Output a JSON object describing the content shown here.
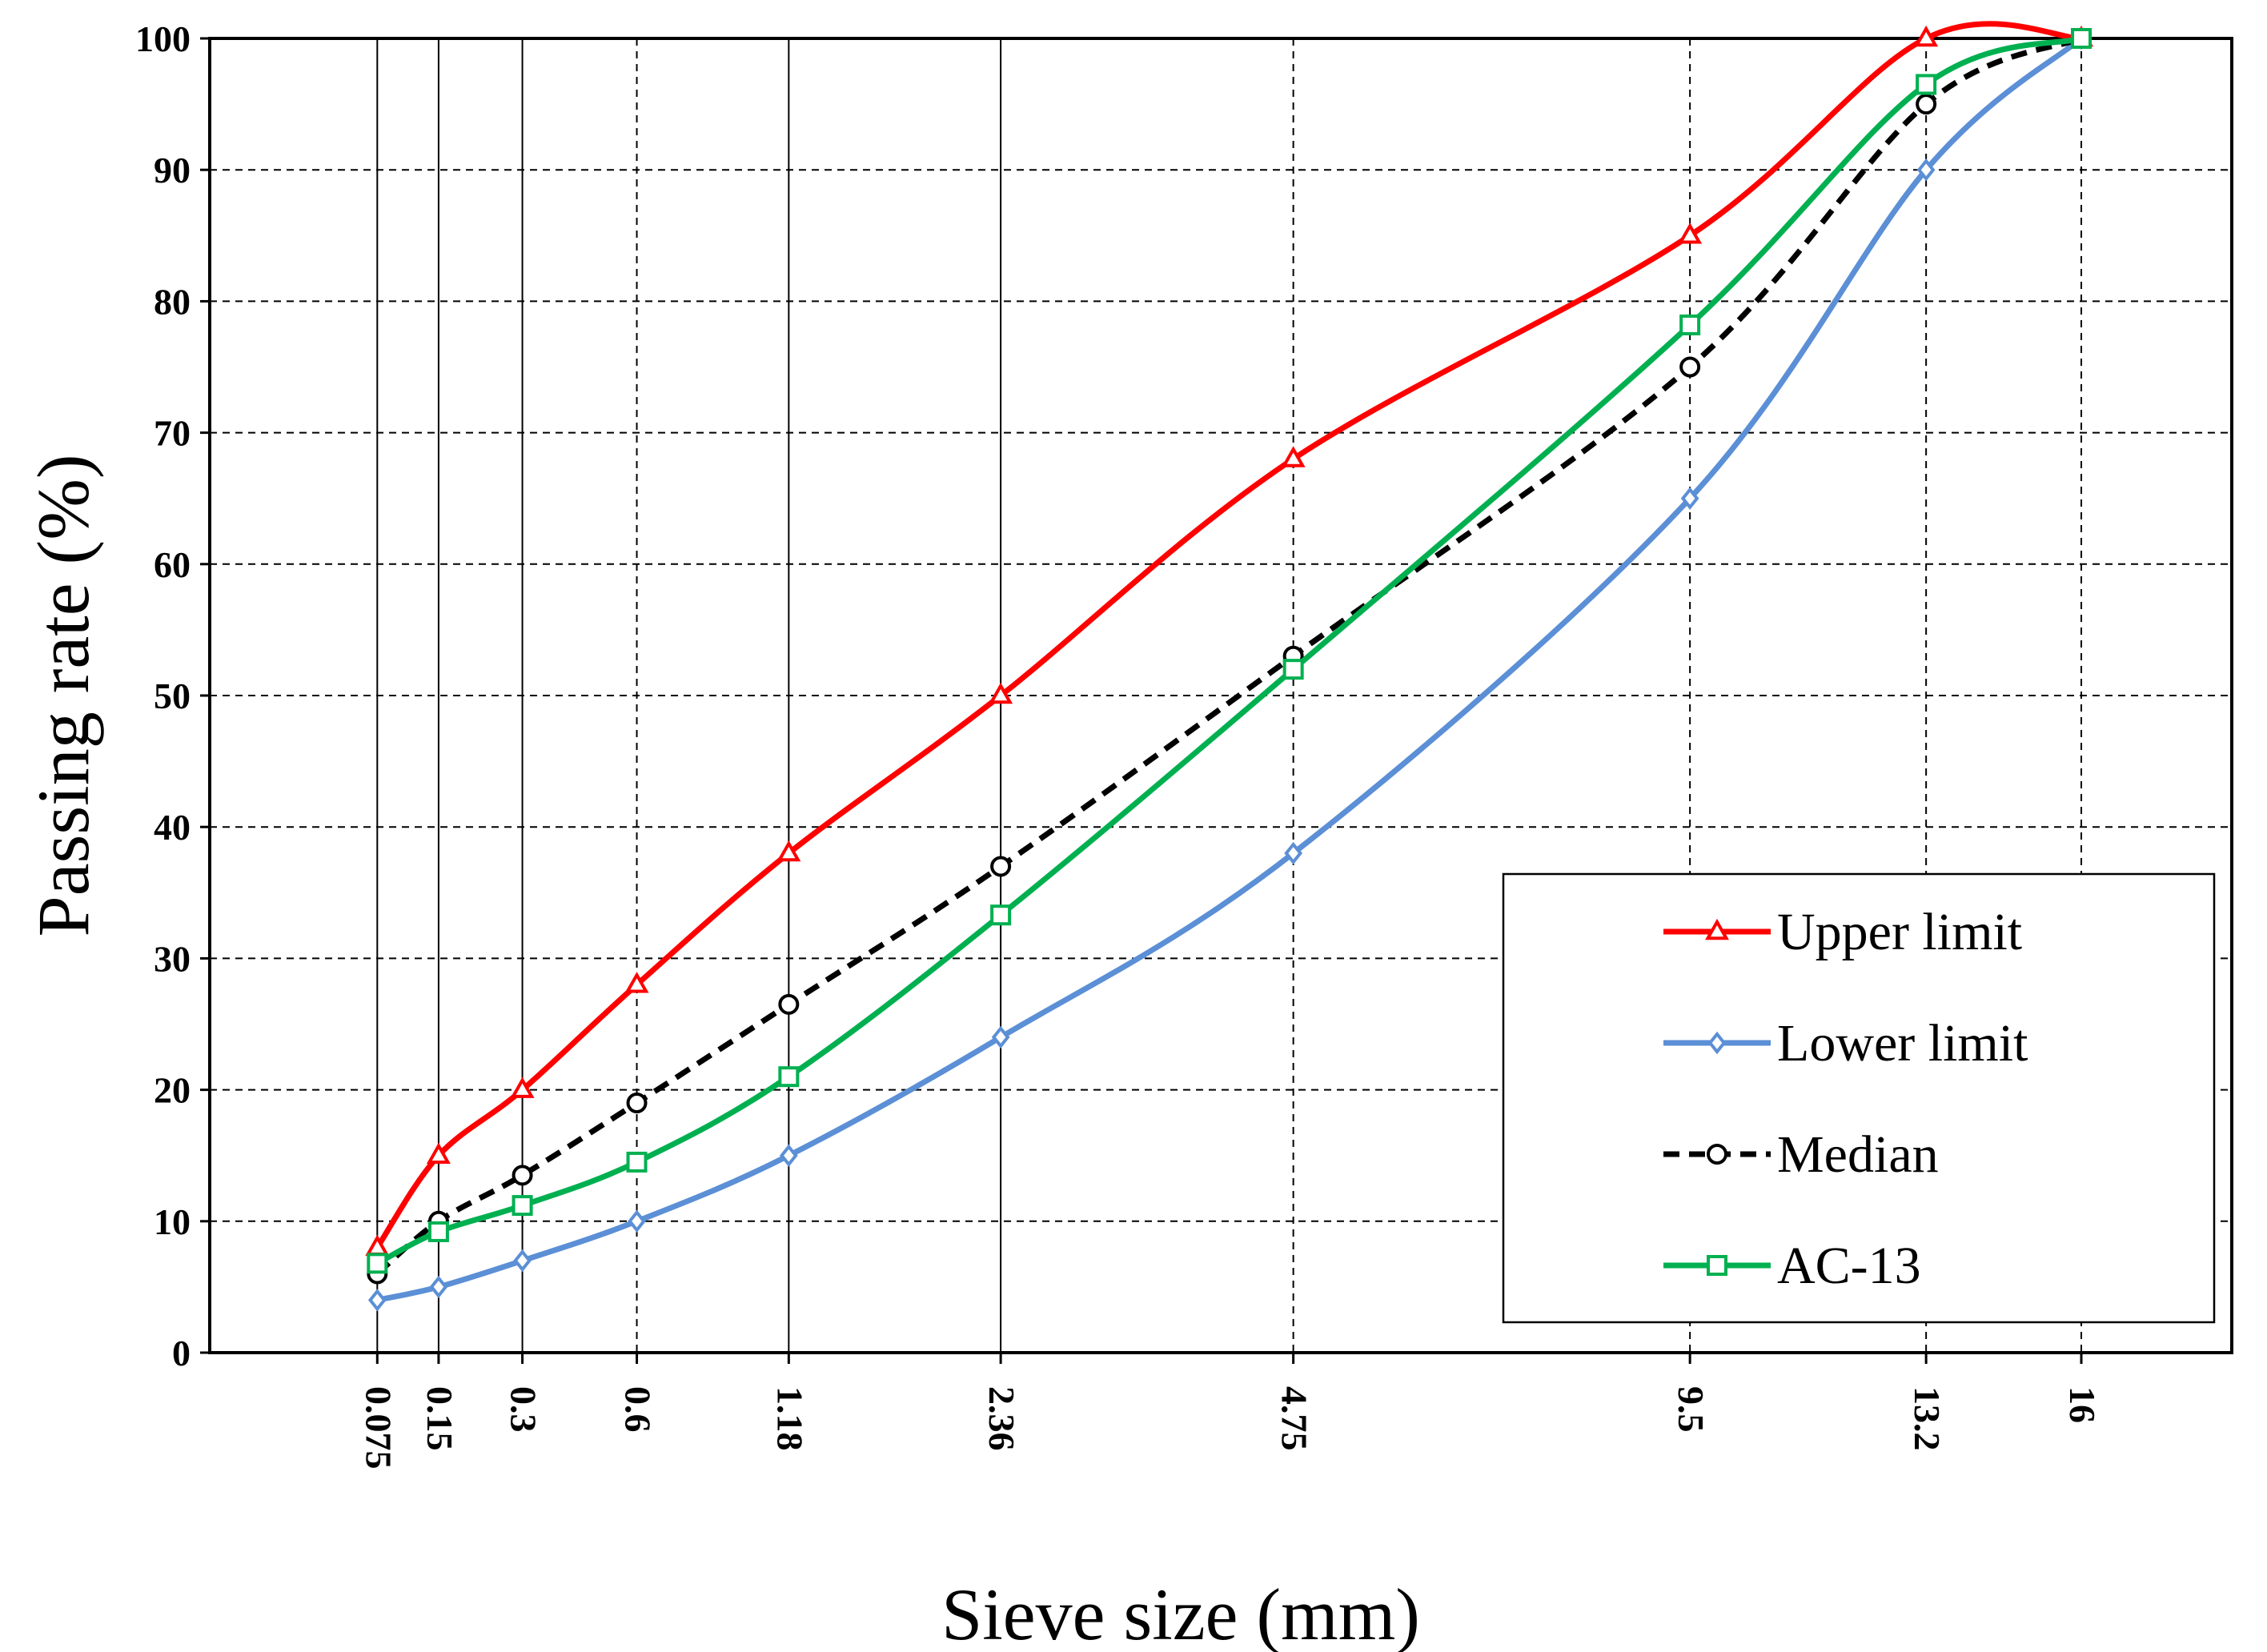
{
  "chart_data": {
    "type": "line",
    "title": "",
    "xlabel": "Sieve size (mm)",
    "ylabel": "Passing rate (%)",
    "x_scale": "power-0.45",
    "x": [
      0.075,
      0.15,
      0.3,
      0.6,
      1.18,
      2.36,
      4.75,
      9.5,
      13.2,
      16
    ],
    "x_tick_labels": [
      "0.075",
      "0.15",
      "0.3",
      "0.6",
      "1.18",
      "2.36",
      "4.75",
      "9.5",
      "13.2",
      "16"
    ],
    "xlim": [
      0,
      19
    ],
    "ylim": [
      0,
      100
    ],
    "y_ticks": [
      0,
      10,
      20,
      30,
      40,
      50,
      60,
      70,
      80,
      90,
      100
    ],
    "grid": true,
    "legend_position": "bottom-right",
    "series": [
      {
        "name": "Upper limit",
        "color": "#ff0000",
        "marker": "triangle",
        "dash": "solid",
        "values": [
          8,
          15,
          20,
          28,
          38,
          50,
          68,
          85,
          100,
          100
        ]
      },
      {
        "name": "Lower limit",
        "color": "#5b8fd6",
        "marker": "diamond",
        "dash": "solid",
        "values": [
          4,
          5,
          7,
          10,
          15,
          24,
          38,
          65,
          90,
          100
        ]
      },
      {
        "name": "Median",
        "color": "#000000",
        "marker": "circle",
        "dash": "dashed",
        "values": [
          6,
          10,
          13.5,
          19,
          26.5,
          37,
          53,
          75,
          95,
          100
        ]
      },
      {
        "name": "AC-13",
        "color": "#00b050",
        "marker": "square",
        "dash": "solid",
        "values": [
          6.8,
          9.2,
          11.2,
          14.5,
          21,
          33.3,
          52,
          78.2,
          96.5,
          100
        ]
      }
    ]
  }
}
